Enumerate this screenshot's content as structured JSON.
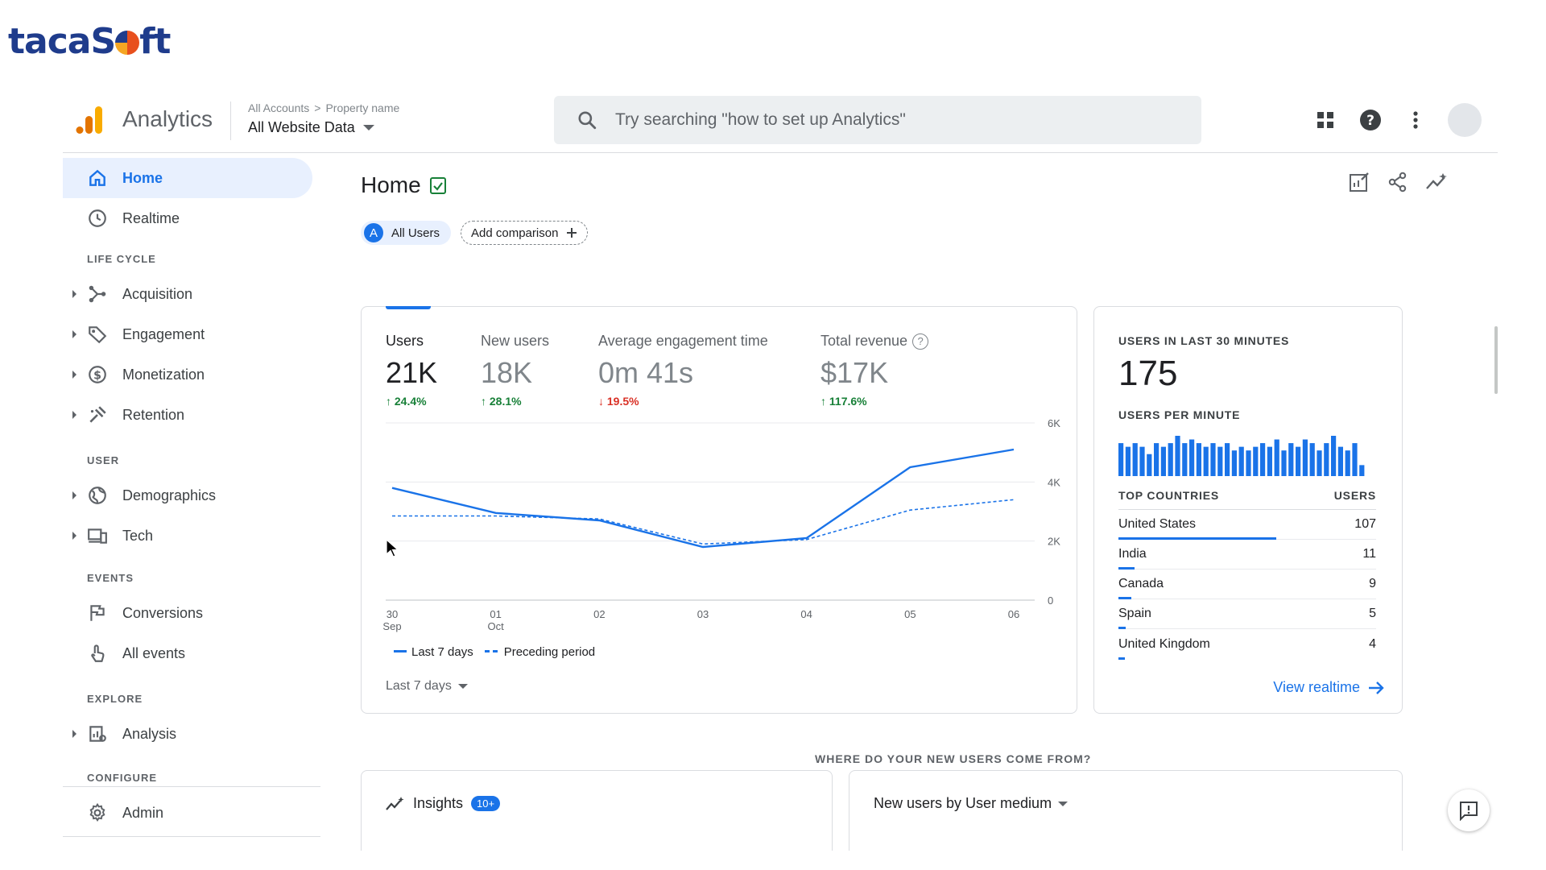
{
  "watermark": {
    "brand": "tacaSoft"
  },
  "topbar": {
    "app_name": "Analytics",
    "breadcrumb_1": "All Accounts",
    "breadcrumb_2": "Property name",
    "property": "All Website Data",
    "search_placeholder": "Try searching \"how to set up Analytics\"",
    "icons": [
      "apps-grid-icon",
      "help-icon",
      "more-vert-icon",
      "avatar"
    ]
  },
  "sidebar": {
    "home": "Home",
    "realtime": "Realtime",
    "sec_lifecycle": "LIFE CYCLE",
    "acquisition": "Acquisition",
    "engagement": "Engagement",
    "monetization": "Monetization",
    "retention": "Retention",
    "sec_user": "USER",
    "demographics": "Demographics",
    "tech": "Tech",
    "sec_events": "EVENTS",
    "conversions": "Conversions",
    "all_events": "All events",
    "sec_explore": "EXPLORE",
    "analysis": "Analysis",
    "sec_configure": "CONFIGURE",
    "admin": "Admin"
  },
  "main": {
    "title": "Home",
    "all_users_letter": "A",
    "all_users": "All Users",
    "add_comparison": "Add comparison",
    "metrics": {
      "users_label": "Users",
      "users_value": "21K",
      "users_delta": "24.4%",
      "new_label": "New users",
      "new_value": "18K",
      "new_delta": "28.1%",
      "eng_label": "Average engagement time",
      "eng_value": "0m 41s",
      "eng_delta": "19.5%",
      "rev_label": "Total revenue",
      "rev_value": "$17K",
      "rev_delta": "117.6%"
    },
    "legend_current": "Last 7 days",
    "legend_previous": "Preceding period",
    "range_select": "Last 7 days"
  },
  "chart_data": {
    "type": "line",
    "x": [
      "30 Sep",
      "01 Oct",
      "02",
      "03",
      "04",
      "05",
      "06"
    ],
    "x_ticks_top": [
      "30",
      "01",
      "02",
      "03",
      "04",
      "05",
      "06"
    ],
    "x_ticks_bottom": [
      "Sep",
      "Oct",
      "",
      "",
      "",
      "",
      ""
    ],
    "y_ticks": [
      "0",
      "2K",
      "4K",
      "6K"
    ],
    "ylim": [
      0,
      6000
    ],
    "y_axis_side": "right",
    "grid": true,
    "series": [
      {
        "name": "Last 7 days",
        "style": "solid",
        "values": [
          3800,
          2950,
          2700,
          1800,
          2100,
          4500,
          5100
        ]
      },
      {
        "name": "Preceding period",
        "style": "dashed",
        "values": [
          2850,
          2850,
          2750,
          1900,
          2050,
          3050,
          3400
        ]
      }
    ],
    "color": "#1a73e8"
  },
  "realtime": {
    "cap_users": "USERS IN LAST 30 MINUTES",
    "users_count": "175",
    "cap_per_minute": "USERS PER MINUTE",
    "per_minute": [
      9,
      8,
      9,
      8,
      6,
      9,
      8,
      9,
      11,
      9,
      10,
      9,
      8,
      9,
      8,
      9,
      7,
      8,
      7,
      8,
      9,
      8,
      10,
      7,
      9,
      8,
      10,
      9,
      7,
      9,
      11,
      8,
      7,
      9,
      3
    ],
    "col_country": "TOP COUNTRIES",
    "col_users": "USERS",
    "countries": [
      {
        "name": "United States",
        "users": "107",
        "share": 1.0
      },
      {
        "name": "India",
        "users": "11",
        "share": 0.103
      },
      {
        "name": "Canada",
        "users": "9",
        "share": 0.084
      },
      {
        "name": "Spain",
        "users": "5",
        "share": 0.047
      },
      {
        "name": "United Kingdom",
        "users": "4",
        "share": 0.037
      }
    ],
    "view_realtime": "View realtime"
  },
  "bottom": {
    "where_caption": "WHERE DO YOUR NEW USERS COME FROM?",
    "insights": "Insights",
    "insights_badge": "10+",
    "new_users_by": "New users by User medium"
  }
}
